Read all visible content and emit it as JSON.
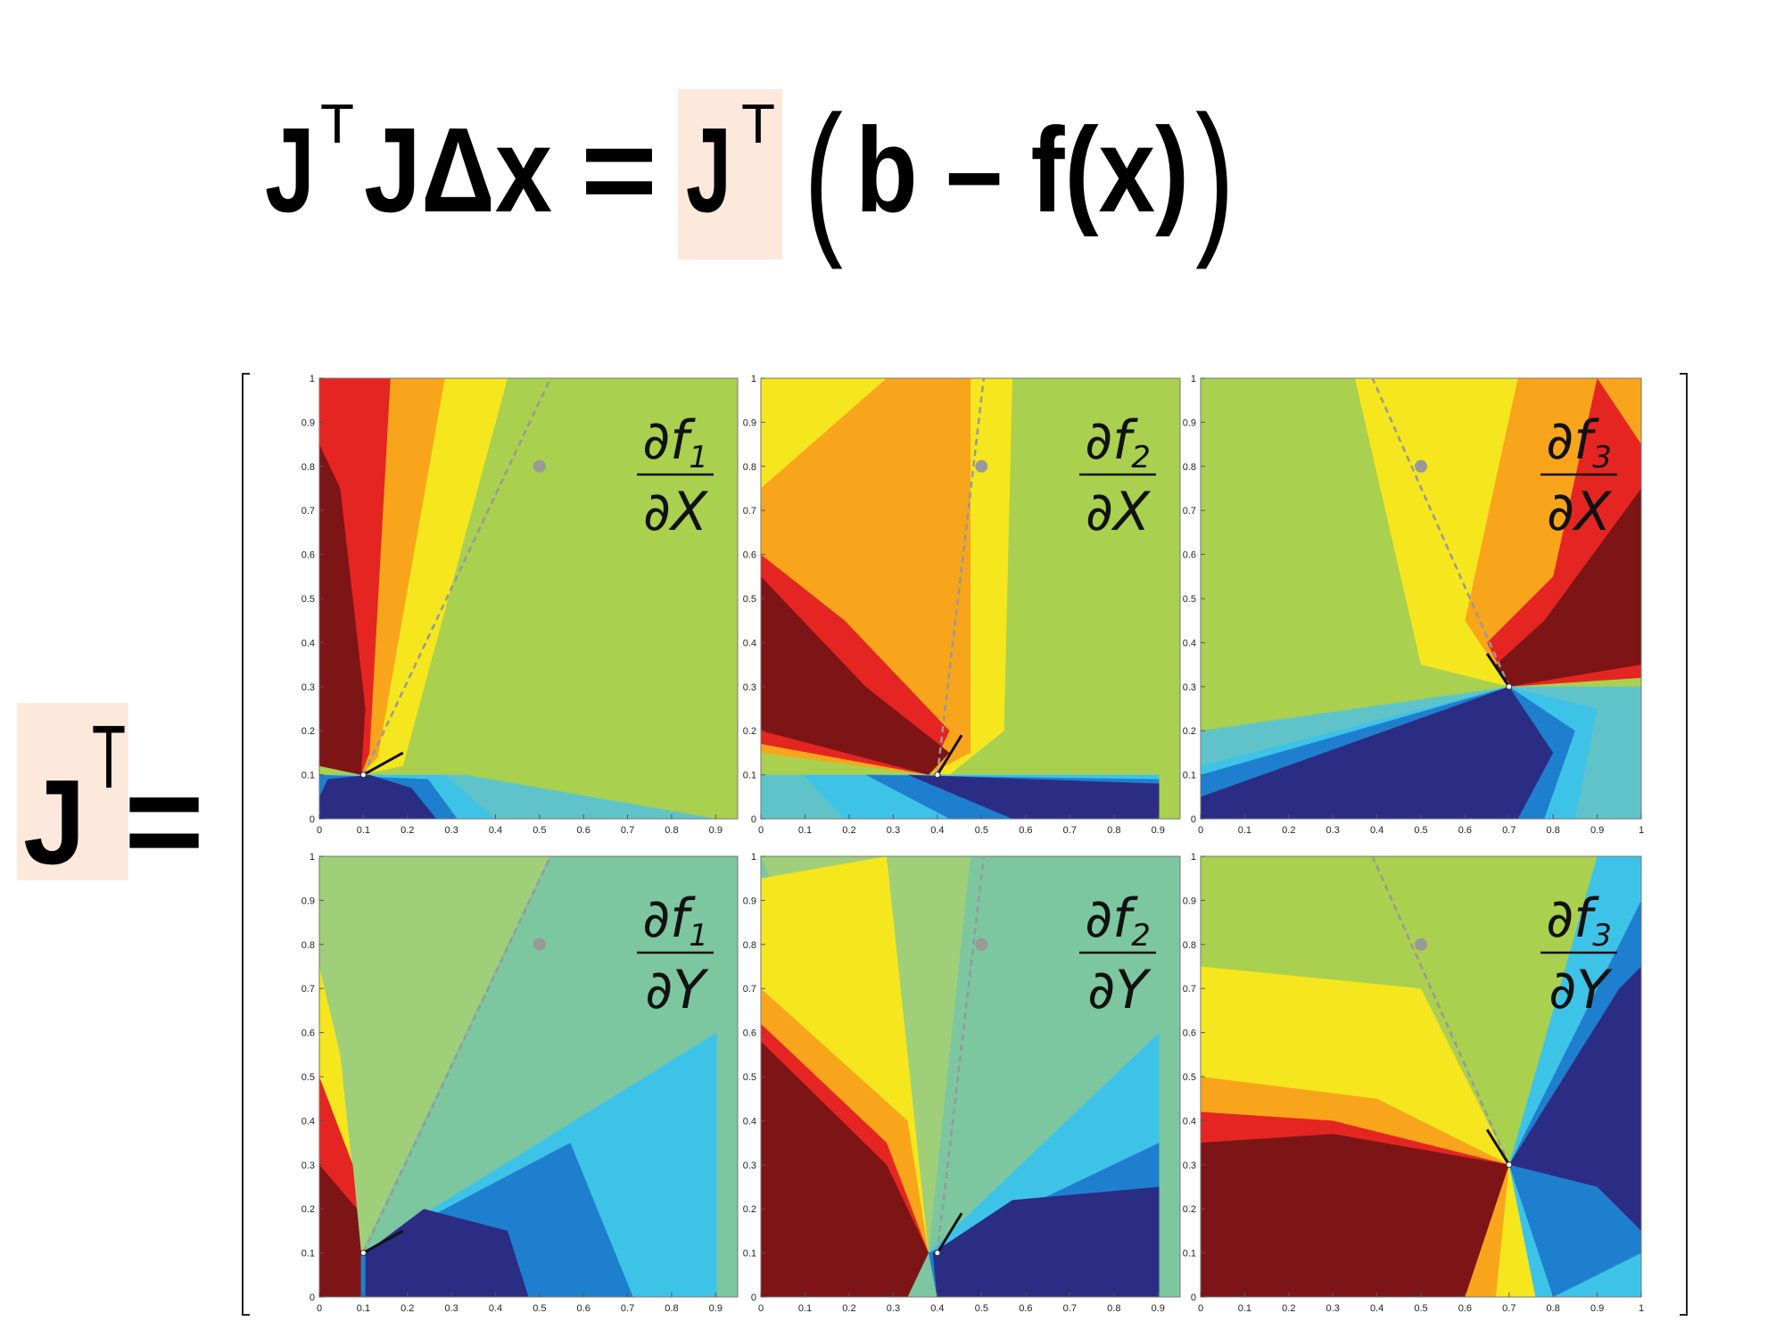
{
  "equation": {
    "j1": "J",
    "t1": "T",
    "jdx": "JΔx",
    "eq": "=",
    "j2": "J",
    "t2": "T",
    "lparen": "(",
    "rhs": "b – f(x)",
    "rparen": ")"
  },
  "lhs": {
    "j": "J",
    "t": "T",
    "eq": "="
  },
  "chart_data": [
    {
      "type": "contour",
      "label": {
        "numerator": "∂f",
        "subscript": "1",
        "denominator": "∂X"
      },
      "xlim": [
        0,
        0.95
      ],
      "ylim": [
        0,
        1
      ],
      "xticks": [
        0,
        0.1,
        0.2,
        0.3,
        0.4,
        0.5,
        0.6,
        0.7,
        0.8,
        0.9
      ],
      "yticks": [
        0,
        0.1,
        0.2,
        0.3,
        0.4,
        0.5,
        0.6,
        0.7,
        0.8,
        0.9,
        1
      ],
      "target": {
        "x": 0.5,
        "y": 0.8
      },
      "anchor": {
        "x": 0.1,
        "y": 0.1
      },
      "ray_end": {
        "x": 0.525,
        "y": 1
      },
      "heading_end": {
        "x": 0.19,
        "y": 0.15
      }
    },
    {
      "type": "contour",
      "label": {
        "numerator": "∂f",
        "subscript": "2",
        "denominator": "∂X"
      },
      "xlim": [
        0,
        0.95
      ],
      "ylim": [
        0,
        1
      ],
      "xticks": [
        0,
        0.1,
        0.2,
        0.3,
        0.4,
        0.5,
        0.6,
        0.7,
        0.8,
        0.9
      ],
      "yticks": [
        0,
        0.1,
        0.2,
        0.3,
        0.4,
        0.5,
        0.6,
        0.7,
        0.8,
        0.9,
        1
      ],
      "target": {
        "x": 0.5,
        "y": 0.8
      },
      "anchor": {
        "x": 0.4,
        "y": 0.1
      },
      "ray_end": {
        "x": 0.505,
        "y": 1
      },
      "heading_end": {
        "x": 0.455,
        "y": 0.19
      }
    },
    {
      "type": "contour",
      "label": {
        "numerator": "∂f",
        "subscript": "3",
        "denominator": "∂X"
      },
      "xlim": [
        0,
        1
      ],
      "ylim": [
        0,
        1
      ],
      "xticks": [
        0,
        0.1,
        0.2,
        0.3,
        0.4,
        0.5,
        0.6,
        0.7,
        0.8,
        0.9,
        1
      ],
      "yticks": [
        0,
        0.1,
        0.2,
        0.3,
        0.4,
        0.5,
        0.6,
        0.7,
        0.8,
        0.9,
        1
      ],
      "target": {
        "x": 0.5,
        "y": 0.8
      },
      "anchor": {
        "x": 0.7,
        "y": 0.3
      },
      "ray_end": {
        "x": 0.39,
        "y": 1
      },
      "heading_end": {
        "x": 0.65,
        "y": 0.375
      }
    },
    {
      "type": "contour",
      "label": {
        "numerator": "∂f",
        "subscript": "1",
        "denominator": "∂Y"
      },
      "xlim": [
        0,
        0.95
      ],
      "ylim": [
        0,
        1
      ],
      "xticks": [
        0,
        0.1,
        0.2,
        0.3,
        0.4,
        0.5,
        0.6,
        0.7,
        0.8,
        0.9
      ],
      "yticks": [
        0,
        0.1,
        0.2,
        0.3,
        0.4,
        0.5,
        0.6,
        0.7,
        0.8,
        0.9,
        1
      ],
      "target": {
        "x": 0.5,
        "y": 0.8
      },
      "anchor": {
        "x": 0.1,
        "y": 0.1
      },
      "ray_end": {
        "x": 0.525,
        "y": 1
      },
      "heading_end": {
        "x": 0.19,
        "y": 0.15
      }
    },
    {
      "type": "contour",
      "label": {
        "numerator": "∂f",
        "subscript": "2",
        "denominator": "∂Y"
      },
      "xlim": [
        0,
        0.95
      ],
      "ylim": [
        0,
        1
      ],
      "xticks": [
        0,
        0.1,
        0.2,
        0.3,
        0.4,
        0.5,
        0.6,
        0.7,
        0.8,
        0.9
      ],
      "yticks": [
        0,
        0.1,
        0.2,
        0.3,
        0.4,
        0.5,
        0.6,
        0.7,
        0.8,
        0.9,
        1
      ],
      "target": {
        "x": 0.5,
        "y": 0.8
      },
      "anchor": {
        "x": 0.4,
        "y": 0.1
      },
      "ray_end": {
        "x": 0.505,
        "y": 1
      },
      "heading_end": {
        "x": 0.455,
        "y": 0.19
      }
    },
    {
      "type": "contour",
      "label": {
        "numerator": "∂f",
        "subscript": "3",
        "denominator": "∂Y"
      },
      "xlim": [
        0,
        1
      ],
      "ylim": [
        0,
        1
      ],
      "xticks": [
        0,
        0.1,
        0.2,
        0.3,
        0.4,
        0.5,
        0.6,
        0.7,
        0.8,
        0.9,
        1
      ],
      "yticks": [
        0,
        0.1,
        0.2,
        0.3,
        0.4,
        0.5,
        0.6,
        0.7,
        0.8,
        0.9,
        1
      ],
      "target": {
        "x": 0.5,
        "y": 0.8
      },
      "anchor": {
        "x": 0.7,
        "y": 0.3
      },
      "ray_end": {
        "x": 0.39,
        "y": 1
      },
      "heading_end": {
        "x": 0.65,
        "y": 0.38
      }
    }
  ]
}
